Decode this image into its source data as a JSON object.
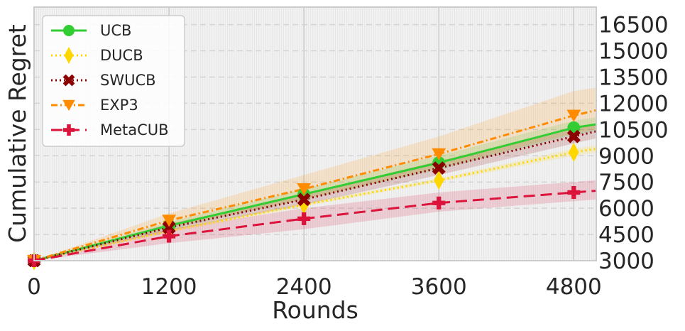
{
  "chart_data": {
    "type": "line",
    "xlabel": "Rounds",
    "ylabel": "Cumulative Regret",
    "xlim": [
      0,
      5000
    ],
    "ylim": [
      3000,
      17500
    ],
    "xticks": [
      0,
      1200,
      2400,
      3600,
      4800
    ],
    "yticks": [
      3000,
      4500,
      6000,
      7500,
      9000,
      10500,
      12000,
      13500,
      15000,
      16500
    ],
    "y_axis_position": "right",
    "grid": true,
    "legend_position": "top-left",
    "x": [
      0,
      1200,
      2400,
      3600,
      4800,
      5000
    ],
    "series": [
      {
        "name": "UCB",
        "color": "#32cd32",
        "marker": "circle",
        "linestyle": "solid",
        "values": [
          3000,
          5000,
          6800,
          8600,
          10600,
          10800
        ],
        "band": [
          [
            3000,
            3000
          ],
          [
            4800,
            5200
          ],
          [
            6500,
            7100
          ],
          [
            8200,
            9000
          ],
          [
            10200,
            11000
          ],
          [
            10400,
            11200
          ]
        ]
      },
      {
        "name": "DUCB",
        "color": "#ffd700",
        "marker": "diamond",
        "linestyle": "dotted",
        "values": [
          3000,
          4700,
          6200,
          7600,
          9200,
          9400
        ],
        "band": [
          [
            3000,
            3000
          ],
          [
            4600,
            4800
          ],
          [
            6100,
            6300
          ],
          [
            7500,
            7700
          ],
          [
            9000,
            9400
          ],
          [
            9200,
            9600
          ]
        ]
      },
      {
        "name": "SWUCB",
        "color": "#8b0000",
        "marker": "x",
        "linestyle": "dotted",
        "values": [
          3000,
          4900,
          6500,
          8300,
          10100,
          10400
        ],
        "band": [
          [
            3000,
            3000
          ],
          [
            4700,
            5100
          ],
          [
            6200,
            6800
          ],
          [
            7900,
            8700
          ],
          [
            9700,
            10500
          ],
          [
            10000,
            10800
          ]
        ]
      },
      {
        "name": "EXP3",
        "color": "#ff8c00",
        "marker": "triangle-down",
        "linestyle": "dashdot",
        "values": [
          3000,
          5300,
          7100,
          9100,
          11300,
          11600
        ],
        "band": [
          [
            3000,
            3000
          ],
          [
            4900,
            5700
          ],
          [
            6500,
            7900
          ],
          [
            8300,
            10100
          ],
          [
            10300,
            12700
          ],
          [
            10500,
            12900
          ]
        ]
      },
      {
        "name": "MetaCUB",
        "color": "#dc143c",
        "marker": "plus",
        "linestyle": "dashed",
        "values": [
          3000,
          4400,
          5400,
          6300,
          6900,
          7000
        ],
        "band": [
          [
            3000,
            3000
          ],
          [
            4000,
            4800
          ],
          [
            4800,
            6000
          ],
          [
            5800,
            6900
          ],
          [
            6400,
            7500
          ],
          [
            6500,
            7600
          ]
        ]
      }
    ]
  }
}
